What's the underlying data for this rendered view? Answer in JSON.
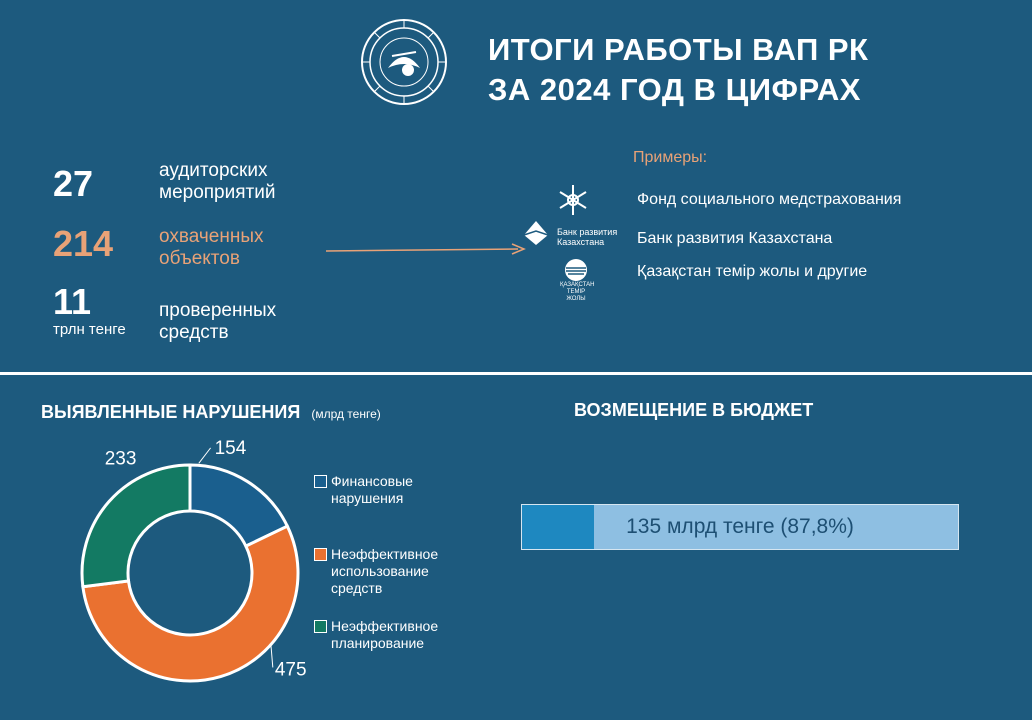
{
  "header": {
    "title_line1": "ИТОГИ РАБОТЫ ВАП РК",
    "title_line2": "ЗА 2024 ГОД В ЦИФРАХ"
  },
  "stats": [
    {
      "number": "27",
      "desc1": "аудиторских",
      "desc2": "мероприятий"
    },
    {
      "number": "214",
      "desc1": "охваченных",
      "desc2": "объектов"
    },
    {
      "number": "11",
      "unit": "трлн тенге",
      "desc1": "проверенных",
      "desc2": "средств"
    }
  ],
  "examples": {
    "title": "Примеры:",
    "items": [
      {
        "text": "Фонд социального медстрахования",
        "icon": "snowflake-logo-icon"
      },
      {
        "text": "Банк развития Казахстана",
        "icon": "bank-logo-icon",
        "logo_text1": "Банк развития",
        "logo_text2": "Казахстана"
      },
      {
        "text": "Қазақстан темір жолы и другие",
        "icon": "railway-logo-icon",
        "logo_text1": "ҚАЗАҚСТАН",
        "logo_text2": "ТЕМІР",
        "logo_text3": "ЖОЛЫ"
      }
    ]
  },
  "violations": {
    "title": "ВЫЯВЛЕННЫЕ НАРУШЕНИЯ",
    "subtitle": "(млрд тенге)"
  },
  "legend": [
    {
      "line1": "Финансовые",
      "line2": "нарушения",
      "color": "#1a5f8e"
    },
    {
      "line1": "Неэффективное",
      "line2": "использование",
      "line3": "средств",
      "color": "#ea7130"
    },
    {
      "line1": "Неэффективное",
      "line2": "планирование",
      "color": "#137a63"
    }
  ],
  "chart_data": {
    "type": "pie",
    "donut": true,
    "categories": [
      "Финансовые нарушения",
      "Неэффективное использование средств",
      "Неэффективное планирование"
    ],
    "values": [
      154,
      475,
      233
    ],
    "colors": [
      "#1a5f8e",
      "#ea7130",
      "#137a63"
    ],
    "data_labels": [
      "154",
      "475",
      "233"
    ],
    "legend_position": "right"
  },
  "budget": {
    "title": "ВОЗМЕЩЕНИЕ В БЮДЖЕТ",
    "bar_text": "135 млрд тенге (87,8%)",
    "bar_fill_fraction": 0.166
  }
}
